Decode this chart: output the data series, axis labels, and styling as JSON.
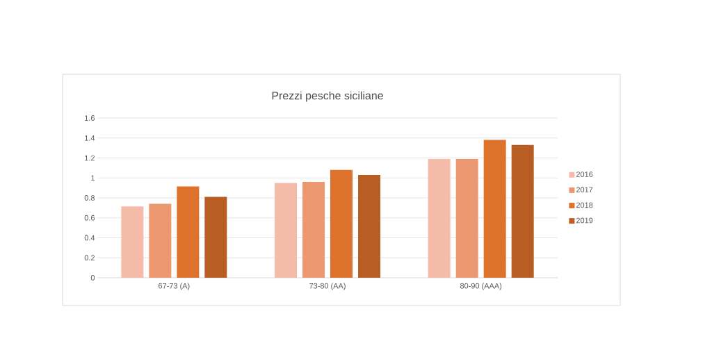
{
  "chart_data": {
    "type": "bar",
    "title": "Prezzi pesche siciliane",
    "categories": [
      "67-73 (A)",
      "73-80 (AA)",
      "80-90 (AAA)"
    ],
    "series": [
      {
        "name": "2016",
        "color": "#f4bca8",
        "values": [
          0.715,
          0.95,
          1.19
        ]
      },
      {
        "name": "2017",
        "color": "#ec9870",
        "values": [
          0.74,
          0.96,
          1.19
        ]
      },
      {
        "name": "2018",
        "color": "#dc722c",
        "values": [
          0.915,
          1.08,
          1.38
        ]
      },
      {
        "name": "2019",
        "color": "#b85e24",
        "values": [
          0.81,
          1.03,
          1.33
        ]
      }
    ],
    "ylim": [
      0,
      1.6
    ],
    "yticks": [
      0,
      0.2,
      0.4,
      0.6,
      0.8,
      1,
      1.2,
      1.4,
      1.6
    ],
    "grid": "y",
    "legend": "right"
  }
}
